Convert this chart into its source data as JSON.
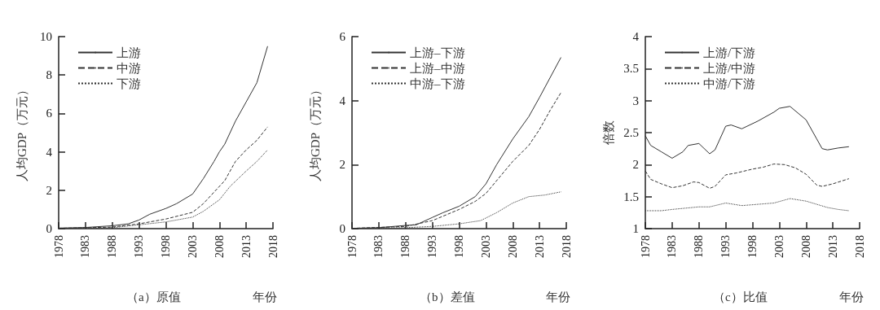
{
  "chart_data": [
    {
      "type": "line",
      "title": "（a）原值",
      "xlabel": "年份",
      "ylabel": "人均GDP（万元）",
      "xlim": [
        1978,
        2018
      ],
      "xticks": [
        1978,
        1983,
        1988,
        1993,
        1998,
        2003,
        2008,
        2013,
        2018
      ],
      "ylim": [
        0,
        10
      ],
      "yticks": [
        0,
        2,
        4,
        6,
        8,
        10
      ],
      "grid": false,
      "legend": "top left",
      "marker": "none",
      "series": [
        {
          "name": "上游",
          "color": "#333333",
          "line_style": "solid",
          "x": [
            1978,
            1983,
            1988,
            1991,
            1993,
            1995,
            1998,
            2000,
            2003,
            2005,
            2007,
            2008,
            2009,
            2011,
            2013,
            2015,
            2017
          ],
          "values": [
            0.03,
            0.06,
            0.15,
            0.25,
            0.45,
            0.75,
            1.05,
            1.3,
            1.8,
            2.6,
            3.5,
            4.0,
            4.4,
            5.6,
            6.6,
            7.6,
            9.5
          ]
        },
        {
          "name": "中游",
          "color": "#333333",
          "line_style": "dashed",
          "x": [
            1978,
            1988,
            1993,
            1998,
            2003,
            2005,
            2008,
            2009,
            2011,
            2013,
            2015,
            2017
          ],
          "values": [
            0.02,
            0.08,
            0.25,
            0.5,
            0.85,
            1.3,
            2.2,
            2.5,
            3.5,
            4.1,
            4.6,
            5.3
          ]
        },
        {
          "name": "下游",
          "color": "#333333",
          "line_style": "dotted",
          "x": [
            1978,
            1988,
            1993,
            1998,
            2003,
            2005,
            2008,
            2010,
            2013,
            2015,
            2017
          ],
          "values": [
            0.01,
            0.05,
            0.2,
            0.35,
            0.6,
            0.9,
            1.5,
            2.2,
            3.0,
            3.5,
            4.1
          ]
        }
      ]
    },
    {
      "type": "line",
      "title": "（b）差值",
      "xlabel": "年份",
      "ylabel": "人均GDP（万元）",
      "xlim": [
        1978,
        2018
      ],
      "xticks": [
        1978,
        1983,
        1988,
        1993,
        1998,
        2003,
        2008,
        2013,
        2018
      ],
      "ylim": [
        0,
        6
      ],
      "yticks": [
        0,
        2,
        4,
        6
      ],
      "grid": false,
      "legend": "top left",
      "marker": "none",
      "series": [
        {
          "name": "上游–下游",
          "color": "#333333",
          "line_style": "solid",
          "x": [
            1978,
            1983,
            1988,
            1990,
            1993,
            1995,
            1998,
            2001,
            2003,
            2005,
            2008,
            2011,
            2013,
            2017
          ],
          "values": [
            0.01,
            0.03,
            0.1,
            0.12,
            0.35,
            0.5,
            0.7,
            1.0,
            1.4,
            2.0,
            2.8,
            3.5,
            4.1,
            5.35
          ]
        },
        {
          "name": "上游–中游",
          "color": "#333333",
          "line_style": "dashed",
          "x": [
            1978,
            1988,
            1993,
            1998,
            2001,
            2003,
            2005,
            2008,
            2011,
            2013,
            2015,
            2017
          ],
          "values": [
            0.01,
            0.07,
            0.25,
            0.6,
            0.85,
            1.1,
            1.5,
            2.1,
            2.6,
            3.1,
            3.7,
            4.25
          ]
        },
        {
          "name": "中游–下游",
          "color": "#333333",
          "line_style": "dotted",
          "x": [
            1978,
            1988,
            1993,
            1998,
            2002,
            2005,
            2008,
            2011,
            2014,
            2017
          ],
          "values": [
            0.01,
            0.03,
            0.07,
            0.15,
            0.25,
            0.5,
            0.8,
            1.0,
            1.05,
            1.15
          ]
        }
      ]
    },
    {
      "type": "line",
      "title": "（c）比值",
      "xlabel": "年份",
      "ylabel": "倍数",
      "xlim": [
        1978,
        2018
      ],
      "xticks": [
        1978,
        1983,
        1988,
        1993,
        1998,
        2003,
        2008,
        2013,
        2018
      ],
      "ylim": [
        1,
        4
      ],
      "yticks": [
        1,
        1.5,
        2,
        2.5,
        3,
        3.5,
        4
      ],
      "grid": false,
      "legend": "top left",
      "marker": "none",
      "series": [
        {
          "name": "上游/下游",
          "color": "#333333",
          "line_style": "solid",
          "x": [
            1978,
            1979,
            1981,
            1983,
            1985,
            1986,
            1988,
            1990,
            1991,
            1993,
            1994,
            1996,
            1999,
            2002,
            2003,
            2005,
            2008,
            2010,
            2011,
            2012,
            2014,
            2016
          ],
          "values": [
            2.45,
            2.3,
            2.2,
            2.1,
            2.2,
            2.3,
            2.33,
            2.17,
            2.23,
            2.6,
            2.62,
            2.56,
            2.68,
            2.82,
            2.88,
            2.91,
            2.7,
            2.4,
            2.25,
            2.23,
            2.26,
            2.28
          ]
        },
        {
          "name": "上游/中游",
          "color": "#333333",
          "line_style": "dashed",
          "x": [
            1978,
            1979,
            1981,
            1983,
            1985,
            1987,
            1988,
            1990,
            1991,
            1993,
            1995,
            1998,
            2000,
            2002,
            2004,
            2006,
            2008,
            2010,
            2011,
            2013,
            2016
          ],
          "values": [
            1.9,
            1.77,
            1.7,
            1.64,
            1.67,
            1.73,
            1.72,
            1.63,
            1.66,
            1.84,
            1.87,
            1.93,
            1.96,
            2.01,
            2.0,
            1.95,
            1.85,
            1.68,
            1.66,
            1.7,
            1.78
          ]
        },
        {
          "name": "中游/下游",
          "color": "#333333",
          "line_style": "dotted",
          "x": [
            1978,
            1981,
            1983,
            1988,
            1990,
            1993,
            1996,
            1999,
            2002,
            2005,
            2008,
            2010,
            2012,
            2014,
            2016
          ],
          "values": [
            1.28,
            1.28,
            1.3,
            1.34,
            1.34,
            1.4,
            1.36,
            1.38,
            1.4,
            1.47,
            1.43,
            1.38,
            1.33,
            1.3,
            1.28
          ]
        }
      ]
    }
  ]
}
